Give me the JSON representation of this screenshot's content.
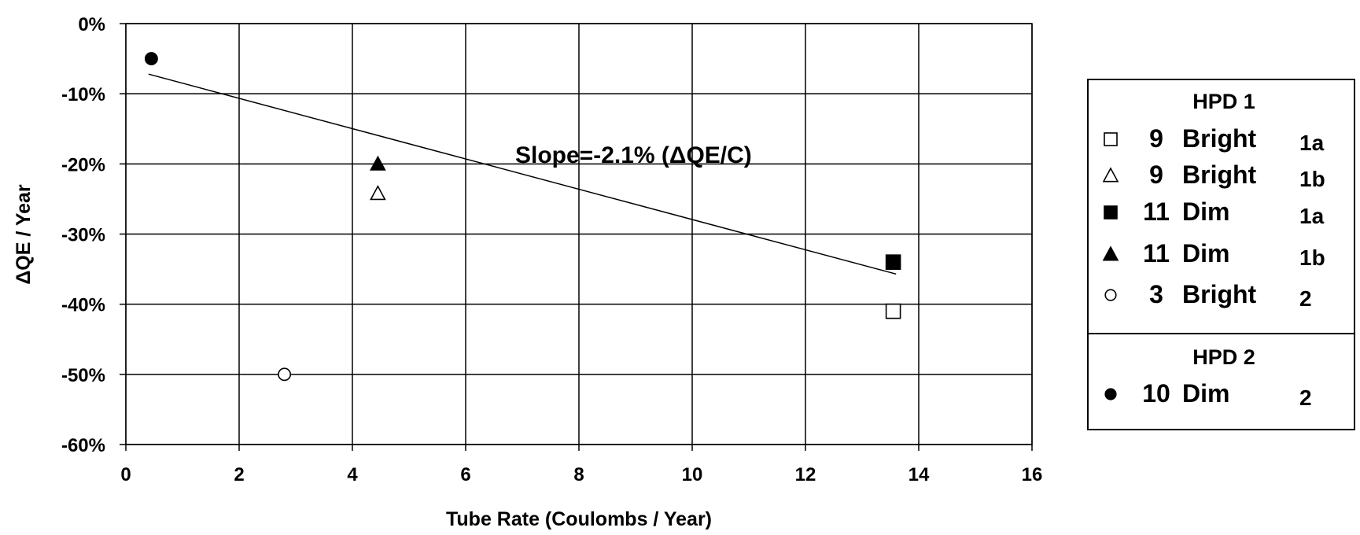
{
  "chart_data": {
    "type": "scatter",
    "xlabel": "Tube Rate (Coulombs / Year)",
    "ylabel": "ΔQE / Year",
    "xlim": [
      0,
      16
    ],
    "ylim": [
      -60,
      0
    ],
    "xticks": [
      0,
      2,
      4,
      6,
      8,
      10,
      12,
      14,
      16
    ],
    "yticks": [
      0,
      -10,
      -20,
      -30,
      -40,
      -50,
      -60
    ],
    "ytick_labels": [
      "0%",
      "-10%",
      "-20%",
      "-30%",
      "-40%",
      "-50%",
      "-60%"
    ],
    "grid": true,
    "annotation": "Slope=-2.1% (ΔQE/C)",
    "trendline": {
      "x": [
        0.4,
        13.6
      ],
      "y": [
        -7.2,
        -35.7
      ]
    },
    "series": [
      {
        "marker": "open-square",
        "points": [
          {
            "x": 13.55,
            "y": -41
          }
        ]
      },
      {
        "marker": "open-triangle",
        "points": [
          {
            "x": 4.45,
            "y": -24.2
          }
        ]
      },
      {
        "marker": "filled-square",
        "points": [
          {
            "x": 13.55,
            "y": -34
          }
        ]
      },
      {
        "marker": "filled-triangle",
        "points": [
          {
            "x": 4.45,
            "y": -20
          }
        ]
      },
      {
        "marker": "open-circle",
        "points": [
          {
            "x": 2.8,
            "y": -50
          }
        ]
      },
      {
        "marker": "filled-circle",
        "points": [
          {
            "x": 0.45,
            "y": -5
          }
        ]
      }
    ],
    "legend": {
      "placement": "right",
      "groups": [
        {
          "title": "HPD 1",
          "entries": [
            {
              "marker": "open-square",
              "num": "9",
              "label": "Bright",
              "id": "1a"
            },
            {
              "marker": "open-triangle",
              "num": "9",
              "label": "Bright",
              "id": "1b"
            },
            {
              "marker": "filled-square",
              "num": "11",
              "label": "Dim",
              "id": "1a"
            },
            {
              "marker": "filled-triangle",
              "num": "11",
              "label": "Dim",
              "id": "1b"
            },
            {
              "marker": "open-circle",
              "num": "3",
              "label": "Bright",
              "id": "2"
            }
          ]
        },
        {
          "title": "HPD 2",
          "entries": [
            {
              "marker": "filled-circle",
              "num": "10",
              "label": "Dim",
              "id": "2"
            }
          ]
        }
      ]
    }
  }
}
